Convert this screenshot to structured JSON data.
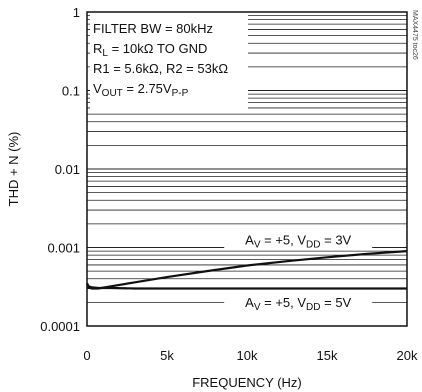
{
  "chart_data": {
    "type": "line",
    "title": "",
    "xlabel": "FREQUENCY (Hz)",
    "ylabel": "THD + N (%)",
    "x_scale": "linear",
    "y_scale": "log",
    "xlim": [
      0,
      20000
    ],
    "ylim": [
      0.0001,
      1
    ],
    "x_ticks": [
      {
        "value": 0,
        "label": "0"
      },
      {
        "value": 5000,
        "label": "5k"
      },
      {
        "value": 10000,
        "label": "10k"
      },
      {
        "value": 15000,
        "label": "15k"
      },
      {
        "value": 20000,
        "label": "20k"
      }
    ],
    "y_ticks": [
      {
        "value": 1,
        "label": "1"
      },
      {
        "value": 0.1,
        "label": "0.1"
      },
      {
        "value": 0.01,
        "label": "0.01"
      },
      {
        "value": 0.001,
        "label": "0.001"
      },
      {
        "value": 0.0001,
        "label": "0.0001"
      }
    ],
    "grid": "log-minor-horizontal",
    "conditions": [
      {
        "text": "FILTER BW = 80kHz"
      },
      {
        "main": "R",
        "sub": "L",
        "rest": " = 10kΩ TO GND"
      },
      {
        "text": "R1 = 5.6kΩ, R2 = 53kΩ"
      },
      {
        "main": "V",
        "sub": "OUT",
        "rest": " = 2.75V",
        "sub2": "P-P"
      }
    ],
    "series": [
      {
        "label_parts": {
          "a": "A",
          "a_sub": "V",
          "b": " = +5, V",
          "b_sub": "DD",
          "c": " = 3V"
        },
        "label_anchor": {
          "x": 13200,
          "y": 0.0012
        },
        "x": [
          0,
          100,
          300,
          700,
          1500,
          3000,
          5000,
          7500,
          10000,
          12500,
          15000,
          17500,
          20000
        ],
        "y": [
          0.00034,
          0.00031,
          0.0003,
          0.0003,
          0.00032,
          0.00036,
          0.00042,
          0.0005,
          0.00059,
          0.00067,
          0.00075,
          0.00083,
          0.0009
        ]
      },
      {
        "label_parts": {
          "a": "A",
          "a_sub": "V",
          "b": " = +5, V",
          "b_sub": "DD",
          "c": " = 5V"
        },
        "label_anchor": {
          "x": 13200,
          "y": 0.00019
        },
        "x": [
          0,
          100,
          300,
          700,
          1500,
          3000,
          5000,
          7500,
          10000,
          12500,
          15000,
          17500,
          20000
        ],
        "y": [
          0.00035,
          0.00032,
          0.00031,
          0.000305,
          0.000305,
          0.0003,
          0.0003,
          0.0003,
          0.0003,
          0.0003,
          0.0003,
          0.0003,
          0.0003
        ]
      }
    ],
    "watermark": "MAX4475 toc26"
  }
}
